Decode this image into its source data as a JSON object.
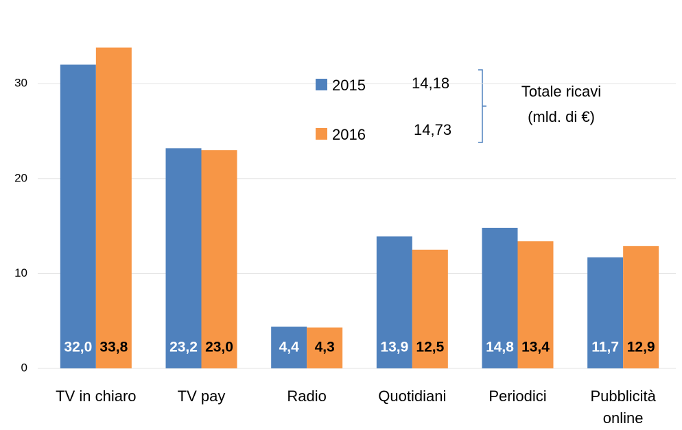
{
  "chart_data": {
    "type": "bar",
    "categories": [
      "TV in chiaro",
      "TV pay",
      "Radio",
      "Quotidiani",
      "Periodici",
      "Pubblicità online"
    ],
    "series": [
      {
        "name": "2015",
        "color": "#4f81bd",
        "values": [
          32.0,
          23.2,
          4.4,
          13.9,
          14.8,
          11.7
        ],
        "value_labels": [
          "32,0",
          "23,2",
          "4,4",
          "13,9",
          "14,8",
          "11,7"
        ]
      },
      {
        "name": "2016",
        "color": "#f79646",
        "values": [
          33.8,
          23.0,
          4.3,
          12.5,
          13.4,
          12.9
        ],
        "value_labels": [
          "33,8",
          "23,0",
          "4,3",
          "12,5",
          "13,4",
          "12,9"
        ]
      }
    ],
    "legend_totals": [
      "14,18",
      "14,73"
    ],
    "annotation": [
      "Totale ricavi",
      "(mld. di €)"
    ],
    "ylim": [
      0,
      36
    ],
    "yticks": [
      0,
      10,
      20,
      30
    ],
    "grid": true
  }
}
